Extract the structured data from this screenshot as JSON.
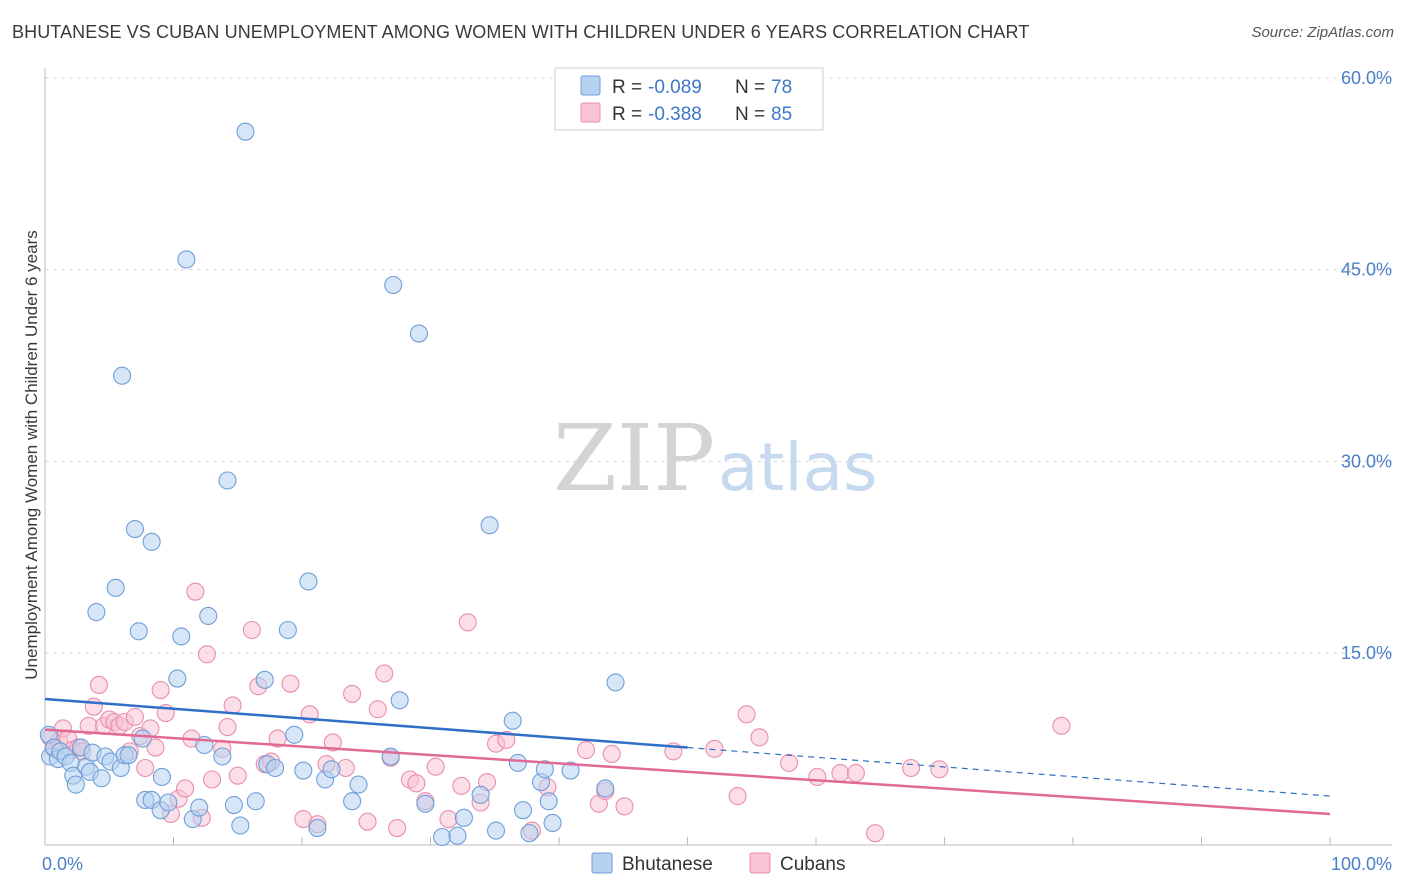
{
  "title": "BHUTANESE VS CUBAN UNEMPLOYMENT AMONG WOMEN WITH CHILDREN UNDER 6 YEARS CORRELATION CHART",
  "source": "Source: ZipAtlas.com",
  "watermark": {
    "zip": "ZIP",
    "atlas": "atlas"
  },
  "colors": {
    "bhutanese_fill": "#b7d1f0",
    "bhutanese_stroke": "#6f9fd8",
    "bhutanese_line": "#2f6fc6",
    "cubans_fill": "#f8c3d4",
    "cubans_stroke": "#e98fae",
    "cubans_line": "#e06a95",
    "axis_text": "#4a7fc9",
    "grid": "#d9d9d9"
  },
  "legend": {
    "rows": [
      {
        "r_label": "R = ",
        "r_value": "-0.089",
        "n_label": "N = ",
        "n_value": "78"
      },
      {
        "r_label": "R = ",
        "r_value": "-0.388",
        "n_label": "N = ",
        "n_value": "85"
      }
    ]
  },
  "bottom_legend": [
    "Bhutanese",
    "Cubans"
  ],
  "chart_data": {
    "type": "scatter",
    "title": "BHUTANESE VS CUBAN UNEMPLOYMENT AMONG WOMEN WITH CHILDREN UNDER 6 YEARS CORRELATION CHART",
    "xlabel": "",
    "ylabel": "Unemployment Among Women with Children Under 6 years",
    "xlim": [
      0,
      100
    ],
    "ylim": [
      0,
      62
    ],
    "x_ticks": [
      "0.0%",
      "100.0%"
    ],
    "y_ticks": [
      {
        "value": 15,
        "label": "15.0%"
      },
      {
        "value": 30,
        "label": "30.0%"
      },
      {
        "value": 45,
        "label": "45.0%"
      },
      {
        "value": 60,
        "label": "60.0%"
      }
    ],
    "grid": true,
    "legend_position": "top-center",
    "series": [
      {
        "name": "Bhutanese",
        "r": -0.089,
        "n": 78,
        "trend": {
          "x0": 0,
          "y0": 11.4,
          "x1": 50,
          "y1": 7.6,
          "dashed_to_x": 100,
          "dashed_to_y": 3.8
        },
        "points": [
          [
            0.3,
            8.6
          ],
          [
            0.4,
            6.9
          ],
          [
            0.7,
            7.6
          ],
          [
            1.0,
            6.7
          ],
          [
            1.2,
            7.3
          ],
          [
            1.6,
            6.9
          ],
          [
            2.0,
            6.4
          ],
          [
            2.2,
            5.4
          ],
          [
            2.4,
            4.7
          ],
          [
            2.8,
            7.6
          ],
          [
            3.2,
            6.1
          ],
          [
            3.5,
            5.7
          ],
          [
            3.7,
            7.2
          ],
          [
            4.0,
            18.2
          ],
          [
            4.4,
            5.2
          ],
          [
            4.7,
            6.9
          ],
          [
            5.1,
            6.5
          ],
          [
            5.5,
            20.1
          ],
          [
            5.9,
            6.0
          ],
          [
            6.0,
            36.7
          ],
          [
            6.2,
            7.0
          ],
          [
            6.5,
            7.0
          ],
          [
            7.0,
            24.7
          ],
          [
            7.3,
            16.7
          ],
          [
            7.6,
            8.3
          ],
          [
            7.8,
            3.5
          ],
          [
            8.3,
            23.7
          ],
          [
            8.3,
            3.5
          ],
          [
            9.0,
            2.7
          ],
          [
            9.1,
            5.3
          ],
          [
            9.6,
            3.3
          ],
          [
            10.3,
            13.0
          ],
          [
            10.6,
            16.3
          ],
          [
            11.0,
            45.8
          ],
          [
            11.5,
            2.0
          ],
          [
            12.0,
            2.9
          ],
          [
            12.4,
            7.8
          ],
          [
            12.7,
            17.9
          ],
          [
            13.8,
            6.9
          ],
          [
            14.2,
            28.5
          ],
          [
            14.7,
            3.1
          ],
          [
            15.2,
            1.5
          ],
          [
            15.6,
            55.8
          ],
          [
            16.4,
            3.4
          ],
          [
            17.1,
            12.9
          ],
          [
            17.3,
            6.3
          ],
          [
            17.9,
            6.0
          ],
          [
            18.9,
            16.8
          ],
          [
            19.4,
            8.6
          ],
          [
            20.1,
            5.8
          ],
          [
            20.5,
            20.6
          ],
          [
            21.2,
            1.3
          ],
          [
            21.8,
            5.1
          ],
          [
            22.3,
            5.9
          ],
          [
            23.9,
            3.4
          ],
          [
            24.4,
            4.7
          ],
          [
            26.9,
            6.9
          ],
          [
            27.1,
            43.8
          ],
          [
            27.6,
            11.3
          ],
          [
            29.1,
            40.0
          ],
          [
            29.6,
            3.2
          ],
          [
            30.9,
            0.6
          ],
          [
            32.1,
            0.7
          ],
          [
            32.6,
            2.1
          ],
          [
            33.9,
            3.9
          ],
          [
            34.6,
            25.0
          ],
          [
            35.1,
            1.1
          ],
          [
            36.4,
            9.7
          ],
          [
            36.8,
            6.4
          ],
          [
            37.2,
            2.7
          ],
          [
            37.7,
            0.9
          ],
          [
            38.6,
            4.9
          ],
          [
            38.9,
            5.9
          ],
          [
            39.2,
            3.4
          ],
          [
            39.5,
            1.7
          ],
          [
            40.9,
            5.8
          ],
          [
            43.6,
            4.4
          ],
          [
            44.4,
            12.7
          ]
        ]
      },
      {
        "name": "Cubans",
        "r": -0.388,
        "n": 85,
        "trend": {
          "x0": 0,
          "y0": 9.0,
          "x1": 100,
          "y1": 2.4
        },
        "points": [
          [
            0.4,
            8.4
          ],
          [
            0.7,
            7.5
          ],
          [
            1.1,
            8.1
          ],
          [
            1.4,
            9.1
          ],
          [
            1.8,
            8.3
          ],
          [
            2.1,
            7.4
          ],
          [
            2.6,
            7.6
          ],
          [
            2.9,
            7.3
          ],
          [
            3.4,
            9.3
          ],
          [
            3.8,
            10.8
          ],
          [
            4.2,
            12.5
          ],
          [
            4.6,
            9.3
          ],
          [
            5.0,
            9.8
          ],
          [
            5.4,
            9.6
          ],
          [
            5.8,
            9.3
          ],
          [
            6.2,
            9.6
          ],
          [
            6.6,
            7.3
          ],
          [
            7.0,
            10.0
          ],
          [
            7.4,
            8.5
          ],
          [
            7.8,
            6.0
          ],
          [
            8.2,
            9.1
          ],
          [
            8.6,
            7.6
          ],
          [
            9.0,
            12.1
          ],
          [
            9.4,
            10.3
          ],
          [
            9.8,
            2.4
          ],
          [
            10.4,
            3.6
          ],
          [
            10.9,
            4.4
          ],
          [
            11.4,
            8.3
          ],
          [
            11.7,
            19.8
          ],
          [
            12.2,
            2.1
          ],
          [
            12.6,
            14.9
          ],
          [
            13.0,
            5.1
          ],
          [
            13.8,
            7.5
          ],
          [
            14.2,
            9.2
          ],
          [
            14.6,
            10.9
          ],
          [
            15.0,
            5.4
          ],
          [
            16.1,
            16.8
          ],
          [
            16.6,
            12.4
          ],
          [
            17.1,
            6.3
          ],
          [
            17.6,
            6.5
          ],
          [
            18.1,
            8.3
          ],
          [
            19.1,
            12.6
          ],
          [
            20.1,
            2.0
          ],
          [
            20.6,
            10.2
          ],
          [
            21.2,
            1.6
          ],
          [
            21.9,
            6.3
          ],
          [
            22.4,
            8.0
          ],
          [
            23.4,
            6.0
          ],
          [
            23.9,
            11.8
          ],
          [
            25.1,
            1.8
          ],
          [
            25.9,
            10.6
          ],
          [
            26.4,
            13.4
          ],
          [
            26.9,
            6.8
          ],
          [
            27.4,
            1.3
          ],
          [
            28.4,
            5.1
          ],
          [
            28.9,
            4.8
          ],
          [
            29.6,
            3.4
          ],
          [
            30.4,
            6.1
          ],
          [
            31.4,
            2.0
          ],
          [
            32.4,
            4.6
          ],
          [
            32.9,
            17.4
          ],
          [
            33.9,
            3.3
          ],
          [
            34.4,
            4.9
          ],
          [
            35.1,
            7.9
          ],
          [
            35.9,
            8.2
          ],
          [
            37.9,
            1.1
          ],
          [
            39.1,
            4.5
          ],
          [
            42.1,
            7.4
          ],
          [
            43.1,
            3.2
          ],
          [
            43.6,
            4.2
          ],
          [
            44.1,
            7.1
          ],
          [
            45.1,
            3.0
          ],
          [
            48.9,
            7.3
          ],
          [
            52.1,
            7.5
          ],
          [
            53.9,
            3.8
          ],
          [
            54.6,
            10.2
          ],
          [
            55.6,
            8.4
          ],
          [
            57.9,
            6.4
          ],
          [
            60.1,
            5.3
          ],
          [
            61.9,
            5.6
          ],
          [
            63.1,
            5.6
          ],
          [
            64.6,
            0.9
          ],
          [
            67.4,
            6.0
          ],
          [
            69.6,
            5.9
          ],
          [
            79.1,
            9.3
          ]
        ]
      }
    ]
  }
}
